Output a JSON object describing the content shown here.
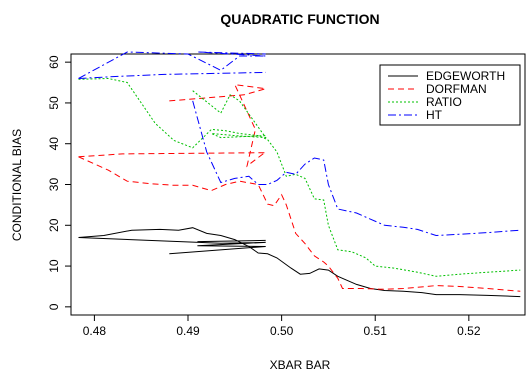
{
  "chart_data": {
    "type": "line",
    "title": "QUADRATIC FUNCTION",
    "xlabel": "XBAR BAR",
    "ylabel": "CONDITIONAL BIAS",
    "xlim": [
      0.4775,
      0.526
    ],
    "ylim": [
      -2,
      62
    ],
    "xticks": [
      0.48,
      0.49,
      0.5,
      0.51,
      0.52
    ],
    "xtick_labels": [
      "0.48",
      "0.49",
      "0.50",
      "0.51",
      "0.52"
    ],
    "yticks": [
      0,
      10,
      20,
      30,
      40,
      50,
      60
    ],
    "ytick_labels": [
      "0",
      "10",
      "20",
      "30",
      "40",
      "50",
      "60"
    ],
    "grid": false,
    "legend_position": "top-right",
    "series": [
      {
        "name": "EDGEWORTH",
        "color": "#000000",
        "dash": "solid",
        "points": [
          [
            0.4783,
            17.0
          ],
          [
            0.481,
            17.5
          ],
          [
            0.484,
            18.8
          ],
          [
            0.487,
            19.0
          ],
          [
            0.489,
            18.8
          ],
          [
            0.4905,
            19.4
          ],
          [
            0.492,
            18.0
          ],
          [
            0.4935,
            17.5
          ],
          [
            0.495,
            16.5
          ],
          [
            0.4965,
            14.8
          ],
          [
            0.4975,
            13.2
          ],
          [
            0.4985,
            13.0
          ],
          [
            0.4995,
            12.0
          ],
          [
            0.501,
            9.5
          ],
          [
            0.502,
            8.0
          ],
          [
            0.503,
            8.2
          ],
          [
            0.504,
            9.3
          ],
          [
            0.505,
            9.0
          ],
          [
            0.506,
            7.5
          ],
          [
            0.508,
            5.5
          ],
          [
            0.5095,
            4.5
          ],
          [
            0.511,
            4.0
          ],
          [
            0.513,
            3.8
          ],
          [
            0.515,
            3.5
          ],
          [
            0.5165,
            3.0
          ],
          [
            0.519,
            3.0
          ],
          [
            0.522,
            2.8
          ],
          [
            0.5255,
            2.5
          ]
        ],
        "extra_paths": [
          [
            [
              0.4783,
              17.0
            ],
            [
              0.4935,
              15.6
            ],
            [
              0.4983,
              15.8
            ],
            [
              0.491,
              15.0
            ],
            [
              0.4983,
              14.8
            ],
            [
              0.488,
              13.0
            ]
          ],
          [
            [
              0.491,
              16.0
            ],
            [
              0.4983,
              16.3
            ]
          ]
        ]
      },
      {
        "name": "DORFMAN",
        "color": "#ff0000",
        "dash": "6,4",
        "points": [
          [
            0.4783,
            36.8
          ],
          [
            0.4815,
            33.5
          ],
          [
            0.4835,
            30.8
          ],
          [
            0.486,
            30.2
          ],
          [
            0.4885,
            29.8
          ],
          [
            0.4905,
            29.8
          ],
          [
            0.4925,
            28.5
          ],
          [
            0.494,
            30.0
          ],
          [
            0.4955,
            30.8
          ],
          [
            0.4975,
            30.0
          ],
          [
            0.4985,
            25.2
          ],
          [
            0.4992,
            24.8
          ],
          [
            0.5,
            27.5
          ],
          [
            0.5005,
            25.0
          ],
          [
            0.5015,
            18.0
          ],
          [
            0.5025,
            15.5
          ],
          [
            0.5035,
            12.5
          ],
          [
            0.5045,
            11.0
          ],
          [
            0.505,
            10.0
          ],
          [
            0.506,
            7.0
          ],
          [
            0.5065,
            4.5
          ],
          [
            0.5085,
            4.5
          ],
          [
            0.511,
            4.3
          ],
          [
            0.513,
            4.5
          ],
          [
            0.5165,
            5.2
          ],
          [
            0.519,
            5.0
          ],
          [
            0.522,
            4.5
          ],
          [
            0.5255,
            3.8
          ]
        ],
        "extra_paths": [
          [
            [
              0.4783,
              36.8
            ],
            [
              0.483,
              37.5
            ],
            [
              0.4983,
              37.8
            ]
          ],
          [
            [
              0.488,
              50.5
            ],
            [
              0.496,
              52.0
            ],
            [
              0.4983,
              53.5
            ],
            [
              0.495,
              54.5
            ],
            [
              0.4972,
              43.5
            ],
            [
              0.4963,
              34.5
            ],
            [
              0.4983,
              38.0
            ]
          ]
        ]
      },
      {
        "name": "RATIO",
        "color": "#00c000",
        "dash": "2,2",
        "points": [
          [
            0.4783,
            55.8
          ],
          [
            0.4815,
            56.0
          ],
          [
            0.4835,
            55.0
          ],
          [
            0.485,
            50.0
          ],
          [
            0.4865,
            45.0
          ],
          [
            0.4885,
            40.8
          ],
          [
            0.4905,
            39.0
          ],
          [
            0.4925,
            43.5
          ],
          [
            0.494,
            43.2
          ],
          [
            0.4955,
            42.5
          ],
          [
            0.4975,
            42.0
          ],
          [
            0.4985,
            41.0
          ],
          [
            0.4995,
            38.0
          ],
          [
            0.5005,
            32.0
          ],
          [
            0.5015,
            32.5
          ],
          [
            0.5025,
            31.5
          ],
          [
            0.5035,
            26.5
          ],
          [
            0.5045,
            26.2
          ],
          [
            0.505,
            20.0
          ],
          [
            0.506,
            14.0
          ],
          [
            0.5075,
            13.5
          ],
          [
            0.509,
            12.0
          ],
          [
            0.51,
            10.0
          ],
          [
            0.512,
            9.5
          ],
          [
            0.5145,
            8.5
          ],
          [
            0.5165,
            7.5
          ],
          [
            0.519,
            8.0
          ],
          [
            0.522,
            8.5
          ],
          [
            0.5255,
            9.0
          ]
        ],
        "extra_paths": [
          [
            [
              0.4905,
              53.0
            ],
            [
              0.4935,
              47.5
            ],
            [
              0.4945,
              52.0
            ],
            [
              0.4955,
              50.5
            ],
            [
              0.4983,
              41.5
            ],
            [
              0.495,
              42.0
            ],
            [
              0.4925,
              42.5
            ],
            [
              0.4935,
              41.5
            ],
            [
              0.4983,
              42.0
            ]
          ]
        ]
      },
      {
        "name": "HT",
        "color": "#0000ff",
        "dash": "8,3,2,3",
        "points": [
          [
            0.4783,
            56.0
          ],
          [
            0.4825,
            56.5
          ],
          [
            0.4875,
            57.0
          ],
          [
            0.4983,
            57.5
          ]
        ],
        "extra_paths": [
          [
            [
              0.4783,
              56.0
            ],
            [
              0.4835,
              62.5
            ],
            [
              0.49,
              62.0
            ],
            [
              0.4935,
              58.0
            ],
            [
              0.4955,
              61.5
            ],
            [
              0.4983,
              61.5
            ],
            [
              0.491,
              62.5
            ],
            [
              0.4983,
              62.0
            ]
          ],
          [
            [
              0.4905,
              50.5
            ],
            [
              0.492,
              38.0
            ],
            [
              0.4935,
              30.5
            ],
            [
              0.495,
              31.5
            ],
            [
              0.4965,
              32.0
            ],
            [
              0.4975,
              30.0
            ],
            [
              0.4985,
              30.0
            ],
            [
              0.4995,
              31.0
            ],
            [
              0.5005,
              33.0
            ],
            [
              0.5015,
              32.5
            ],
            [
              0.5025,
              35.0
            ],
            [
              0.5035,
              36.5
            ],
            [
              0.5045,
              36.0
            ],
            [
              0.505,
              30.0
            ],
            [
              0.506,
              24.0
            ],
            [
              0.508,
              23.0
            ],
            [
              0.5095,
              21.5
            ],
            [
              0.511,
              20.0
            ],
            [
              0.513,
              19.5
            ],
            [
              0.5145,
              19.0
            ],
            [
              0.5165,
              17.5
            ],
            [
              0.519,
              17.8
            ],
            [
              0.522,
              18.2
            ],
            [
              0.5255,
              18.8
            ]
          ]
        ]
      }
    ]
  }
}
